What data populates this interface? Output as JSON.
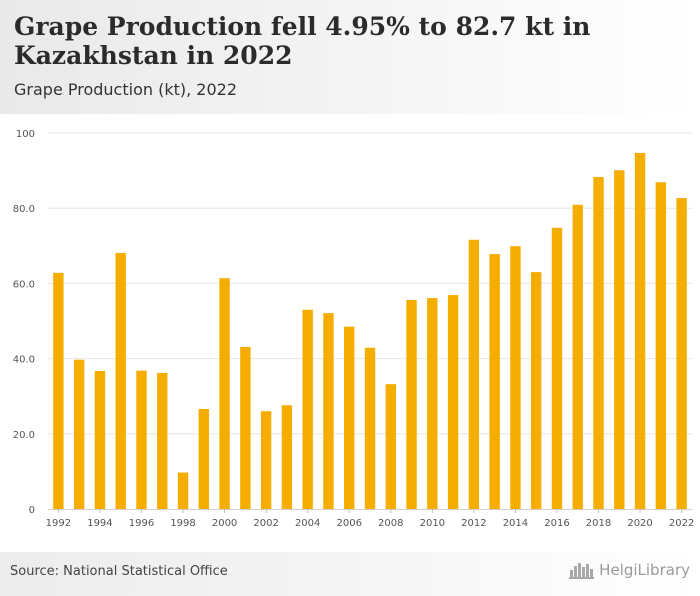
{
  "header": {
    "title": "Grape Production fell 4.95% to 82.7 kt in Kazakhstan in 2022",
    "subtitle": "Grape Production (kt), 2022"
  },
  "footer": {
    "source": "Source: National Statistical Office",
    "brand": "HelgiLibrary"
  },
  "colors": {
    "bar": "#f5ad00",
    "grid": "#e6e6e6",
    "axis_text": "#555555"
  },
  "icons": {
    "brand_logo": "skyline-icon"
  },
  "chart_data": {
    "type": "bar",
    "categories": [
      "1992",
      "1993",
      "1994",
      "1995",
      "1996",
      "1997",
      "1998",
      "1999",
      "2000",
      "2001",
      "2002",
      "2003",
      "2004",
      "2005",
      "2006",
      "2007",
      "2008",
      "2009",
      "2010",
      "2011",
      "2012",
      "2013",
      "2014",
      "2015",
      "2016",
      "2017",
      "2018",
      "2019",
      "2020",
      "2021",
      "2022"
    ],
    "values": [
      62.8,
      39.7,
      36.7,
      68.1,
      36.8,
      36.2,
      9.7,
      26.6,
      61.4,
      43.1,
      26.0,
      27.6,
      53.0,
      52.1,
      48.5,
      42.9,
      33.2,
      55.6,
      56.1,
      56.9,
      71.6,
      67.8,
      69.9,
      63.0,
      74.8,
      80.9,
      88.3,
      90.1,
      94.7,
      86.9,
      82.7
    ],
    "title": "",
    "xlabel": "",
    "ylabel": "",
    "ylim": [
      0,
      100
    ],
    "yticks": [
      "0",
      "20.0",
      "40.0",
      "60.0",
      "80.0",
      "100"
    ],
    "ytick_values": [
      0,
      20,
      40,
      60,
      80,
      100
    ],
    "xtick_labels": [
      "1992",
      "1994",
      "1996",
      "1998",
      "2000",
      "2002",
      "2004",
      "2006",
      "2008",
      "2010",
      "2012",
      "2014",
      "2016",
      "2018",
      "2020",
      "2022"
    ],
    "grid": true,
    "legend": "none"
  }
}
